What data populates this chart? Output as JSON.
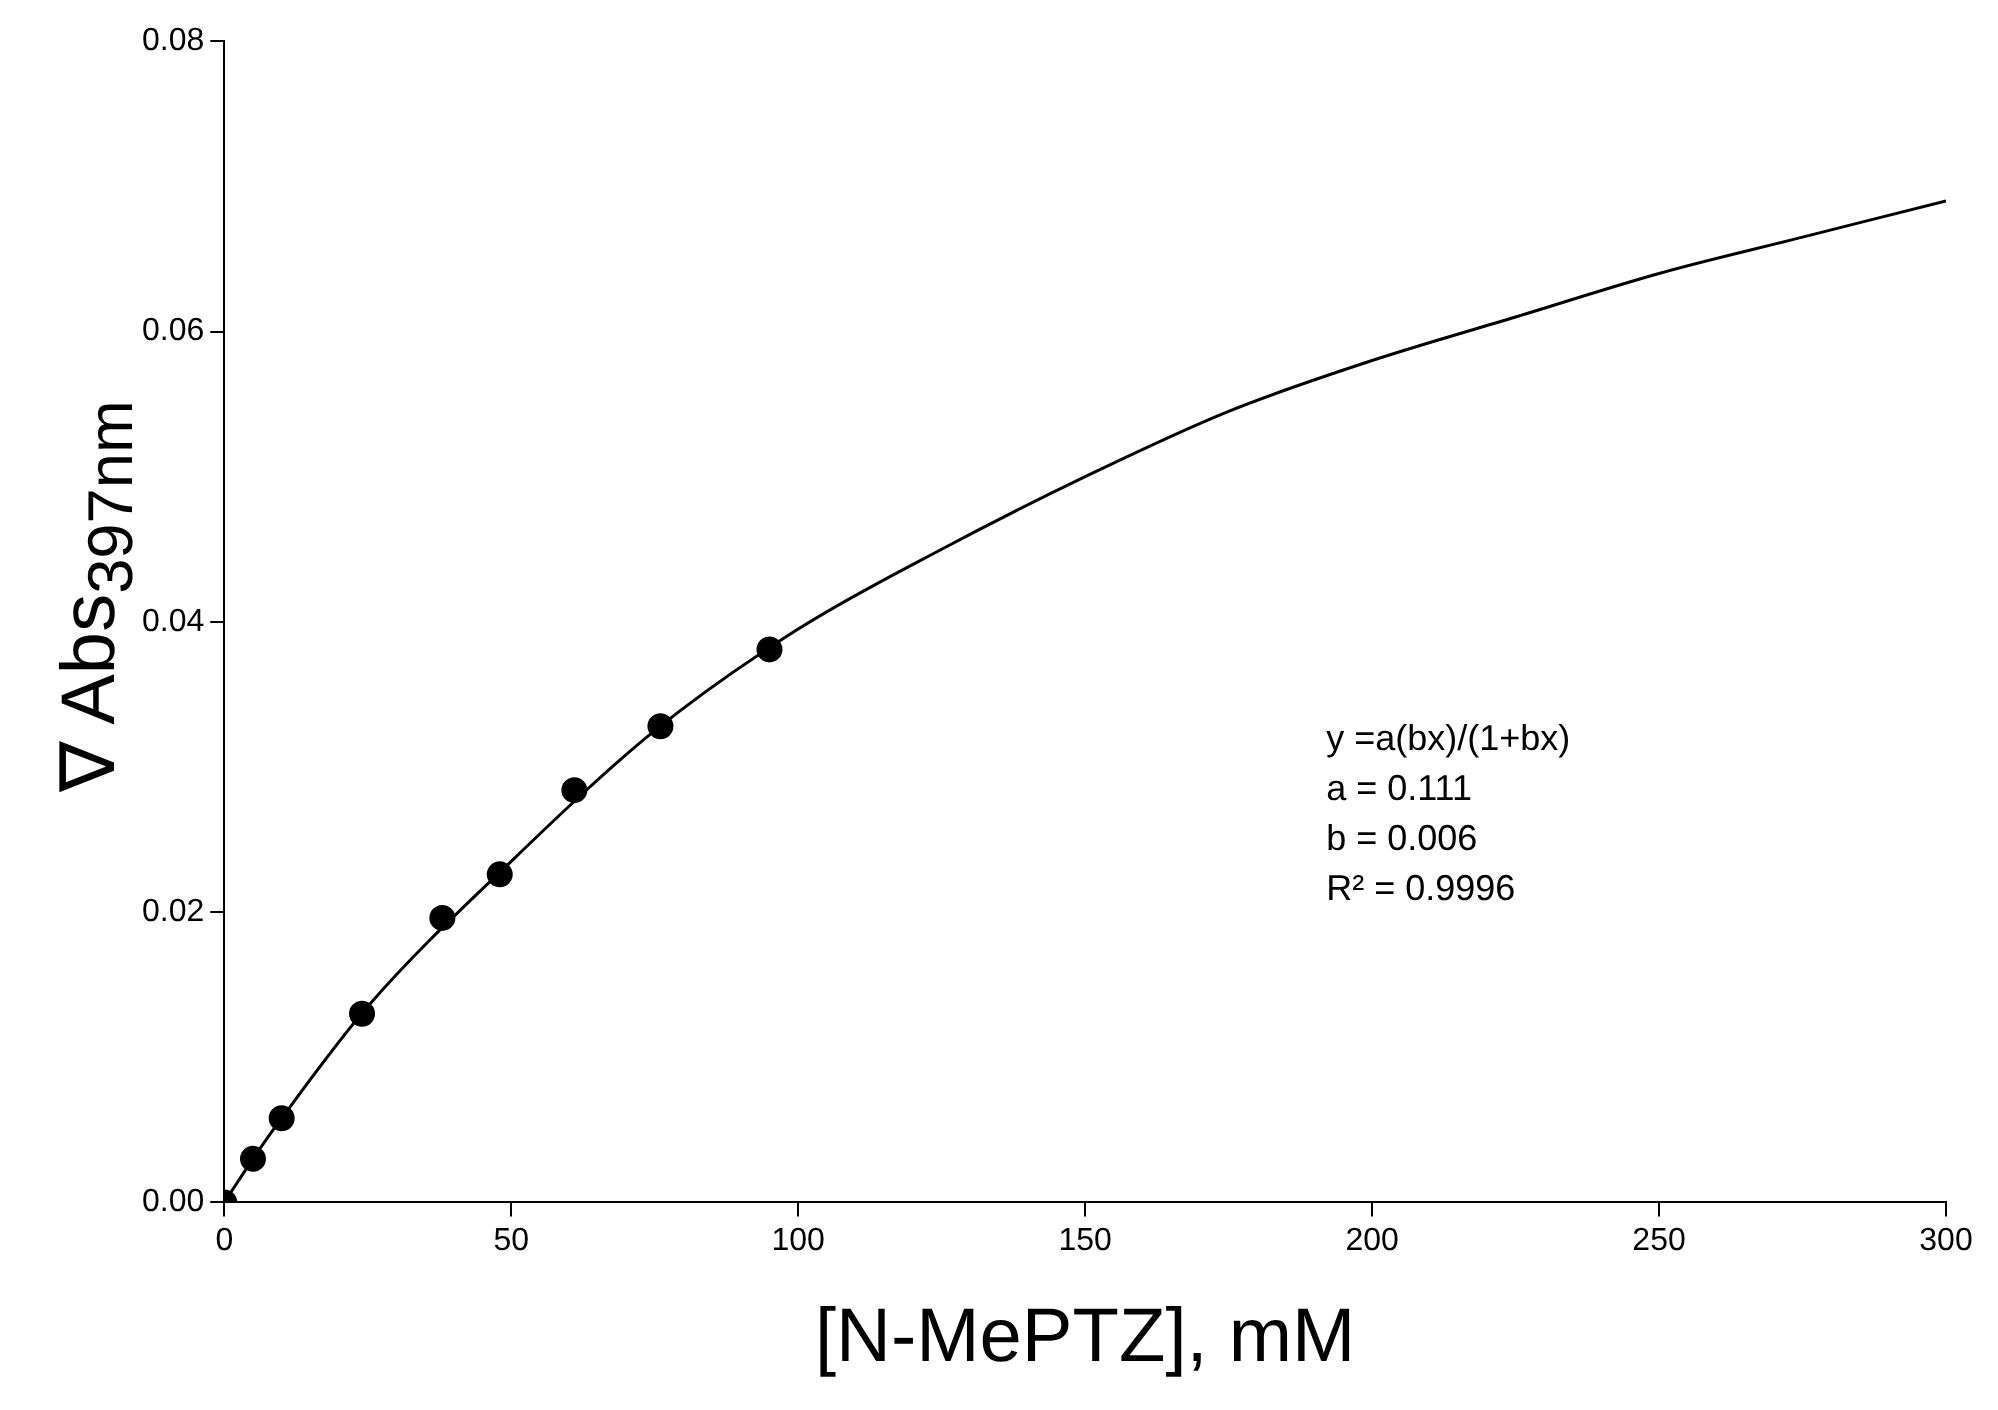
{
  "chart_data": {
    "type": "scatter",
    "xlabel": "[N-MePTZ], mM",
    "ylabel": "∇ Abs$_{397nm}$",
    "xlim": [
      0,
      300
    ],
    "xticks": [
      0,
      50,
      100,
      150,
      200,
      250,
      300
    ],
    "ylim": [
      0,
      0.08
    ],
    "yticks": [
      {
        "value": 0,
        "label": "0.00"
      },
      {
        "value": 0.02,
        "label": "0.02"
      },
      {
        "value": 0.04,
        "label": "0.04"
      },
      {
        "value": 0.06,
        "label": "0.06"
      },
      {
        "value": 0.08,
        "label": "0.08"
      }
    ],
    "grid": false,
    "legend": false,
    "marker": "circle",
    "series": [
      {
        "type": "line",
        "color": "#000000",
        "marker": "none",
        "x": [
          0,
          5,
          10,
          25,
          50,
          75,
          100,
          125,
          150,
          175,
          200,
          225,
          250,
          275,
          300
        ],
        "values": [
          0,
          0.003,
          0.0058,
          0.0135,
          0.0235,
          0.0325,
          0.0395,
          0.045,
          0.05,
          0.0545,
          0.058,
          0.061,
          0.064,
          0.0665,
          0.069
        ]
      },
      {
        "color": "#000000",
        "x": [
          0,
          5,
          10,
          24,
          38,
          48,
          61,
          76,
          95
        ],
        "values": [
          0,
          0.003,
          0.0058,
          0.013,
          0.0196,
          0.0226,
          0.0284,
          0.0328,
          0.0381
        ]
      }
    ],
    "annotations": [
      "y =a(bx)/(1+bx)",
      "a = 0.111",
      "b = 0.006",
      "R² = 0.9996"
    ]
  }
}
